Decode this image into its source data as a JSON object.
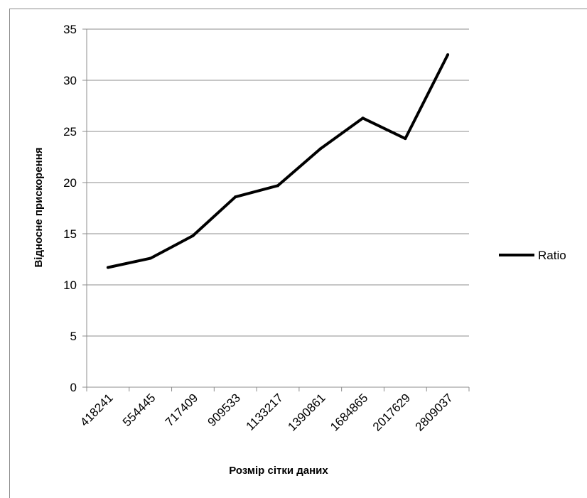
{
  "chart_data": {
    "type": "line",
    "title": "",
    "xlabel": "Розмір сітки даних",
    "ylabel": "Відносне прискорення",
    "categories": [
      "418241",
      "554445",
      "717409",
      "909533",
      "1133217",
      "1390861",
      "1684865",
      "2017629",
      "2809037"
    ],
    "series": [
      {
        "name": "Ratio",
        "values": [
          11.7,
          12.6,
          14.8,
          18.6,
          19.7,
          23.3,
          26.3,
          24.3,
          32.5
        ]
      }
    ],
    "ylim": [
      0,
      35
    ],
    "yticks": [
      "0",
      "5",
      "10",
      "15",
      "20",
      "25",
      "30",
      "35"
    ],
    "grid": "horizontal",
    "legend_position": "right",
    "line_color": "#000000"
  }
}
